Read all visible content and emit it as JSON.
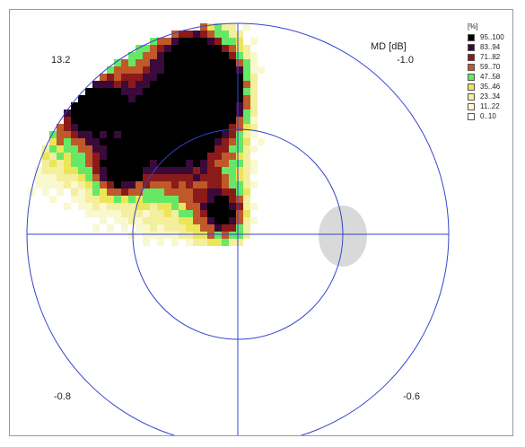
{
  "chart_data": {
    "type": "heatmap",
    "title": "",
    "axis_title": "MD [dB]",
    "quadrant_values": {
      "upper_left": "13.2",
      "upper_right": "-1.0",
      "lower_left": "-0.8",
      "lower_right": "-0.6"
    },
    "legend_title": "[%]",
    "legend": [
      {
        "label": "95..100",
        "color": "#000000"
      },
      {
        "label": "83..94",
        "color": "#3a0a3a"
      },
      {
        "label": "71..82",
        "color": "#8b1a1a"
      },
      {
        "label": "59..70",
        "color": "#c0582a"
      },
      {
        "label": "47..58",
        "color": "#66e866"
      },
      {
        "label": "35..46",
        "color": "#ece55a"
      },
      {
        "label": "23..34",
        "color": "#f3ef9c"
      },
      {
        "label": "11..22",
        "color": "#faf8cf"
      },
      {
        "label": "0..10",
        "color": "#ffffff"
      }
    ],
    "colors": {
      "axes": "#3344cc",
      "blind_spot": "#d9d9d9"
    },
    "grid": false,
    "legend_position": "top-right"
  }
}
